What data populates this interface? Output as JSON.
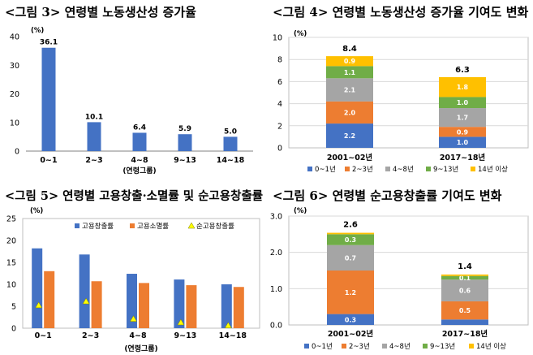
{
  "colors": {
    "blue": "#4472C4",
    "orange": "#ED7D31",
    "gray": "#A5A5A5",
    "green": "#70AD47",
    "yellow": "#FFC000",
    "marker": "#FFFF00"
  },
  "chart_data": [
    {
      "id": "fig3",
      "type": "bar",
      "title": "<그림 3> 연령별 노동생산성 증가율",
      "unit": "(%)",
      "xlabel": "(연령그룹)",
      "ylim": [
        0,
        40
      ],
      "yticks": [
        0,
        10,
        20,
        30,
        40
      ],
      "categories": [
        "0~1",
        "2~3",
        "4~8",
        "9~13",
        "14~18"
      ],
      "values": [
        36.1,
        10.1,
        6.4,
        5.9,
        5.0
      ],
      "data_labels": [
        "36.1",
        "10.1",
        "6.4",
        "5.9",
        "5.0"
      ]
    },
    {
      "id": "fig4",
      "type": "bar",
      "stacked": true,
      "title": "<그림 4> 연령별 노동생산성 증가율 기여도 변화",
      "unit": "(%)",
      "ylim": [
        0,
        10
      ],
      "yticks": [
        0,
        2,
        4,
        6,
        8,
        10
      ],
      "categories": [
        "2001~02년",
        "2017~18년"
      ],
      "totals": [
        "8.4",
        "6.3"
      ],
      "series": [
        {
          "name": "0~1년",
          "values": [
            2.2,
            1.0
          ],
          "labels": [
            "2.2",
            "1.0"
          ]
        },
        {
          "name": "2~3년",
          "values": [
            2.0,
            0.9
          ],
          "labels": [
            "2.0",
            "0.9"
          ]
        },
        {
          "name": "4~8년",
          "values": [
            2.1,
            1.7
          ],
          "labels": [
            "2.1",
            "1.7"
          ]
        },
        {
          "name": "9~13년",
          "values": [
            1.1,
            1.0
          ],
          "labels": [
            "1.1",
            "1.0"
          ]
        },
        {
          "name": "14년 이상",
          "values": [
            0.9,
            1.8
          ],
          "labels": [
            "0.9",
            "1.8"
          ]
        }
      ],
      "legend_position": "bottom"
    },
    {
      "id": "fig5",
      "type": "bar",
      "title": "<그림 5> 연령별 고용창출·소멸률 및 순고용창출률",
      "unit": "(%)",
      "xlabel": "(연령그룹)",
      "ylim": [
        0,
        25
      ],
      "yticks": [
        0,
        5,
        10,
        15,
        20,
        25
      ],
      "categories": [
        "0~1",
        "2~3",
        "4~8",
        "9~13",
        "14~18"
      ],
      "series": [
        {
          "name": "고용창출률",
          "kind": "bar",
          "values": [
            18.2,
            16.8,
            12.4,
            11.1,
            10.0
          ]
        },
        {
          "name": "고용소멸률",
          "kind": "bar",
          "values": [
            13.0,
            10.7,
            10.3,
            9.8,
            9.4
          ]
        },
        {
          "name": "순고용창출률",
          "kind": "marker",
          "values": [
            5.2,
            6.1,
            2.1,
            1.3,
            0.6
          ]
        }
      ],
      "legend_position": "top"
    },
    {
      "id": "fig6",
      "type": "bar",
      "stacked": true,
      "title": "<그림 6> 연령별 순고용창출률 기여도 변화",
      "unit": "(%)",
      "ylim": [
        0,
        3.0
      ],
      "yticks": [
        0,
        1.0,
        2.0,
        3.0
      ],
      "ytick_labels": [
        "0.0",
        "1.0",
        "2.0",
        "3.0"
      ],
      "categories": [
        "2001~02년",
        "2017~18년"
      ],
      "totals": [
        "2.6",
        "1.4"
      ],
      "series": [
        {
          "name": "0~1년",
          "values": [
            0.3,
            0.15
          ],
          "labels": [
            "0.3",
            ""
          ]
        },
        {
          "name": "2~3년",
          "values": [
            1.2,
            0.5
          ],
          "labels": [
            "1.2",
            "0.5"
          ]
        },
        {
          "name": "4~8년",
          "values": [
            0.7,
            0.6
          ],
          "labels": [
            "0.7",
            "0.6"
          ]
        },
        {
          "name": "9~13년",
          "values": [
            0.3,
            0.1
          ],
          "labels": [
            "0.3",
            "0.1"
          ]
        },
        {
          "name": "14년 이상",
          "values": [
            0.04,
            0.04
          ],
          "labels": [
            "",
            ""
          ]
        }
      ],
      "legend_position": "bottom"
    }
  ]
}
